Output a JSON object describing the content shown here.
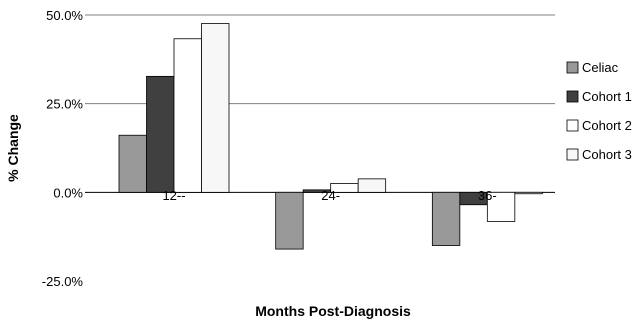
{
  "chart_data": {
    "type": "bar",
    "title": "",
    "xlabel": "Months Post-Diagnosis",
    "ylabel": "% Change",
    "categories": [
      "12--",
      "24-",
      "36-"
    ],
    "ylim": [
      -25,
      50
    ],
    "yticks": [
      {
        "value": 50,
        "label": "50.0%"
      },
      {
        "value": 25,
        "label": "25.0%"
      },
      {
        "value": 0,
        "label": "0.0%"
      },
      {
        "value": -25,
        "label": "-25.0%"
      }
    ],
    "grid": true,
    "legend_position": "right",
    "series": [
      {
        "name": "Celiac",
        "color": "#999999",
        "values": [
          16.1,
          -16.0,
          -15.0
        ]
      },
      {
        "name": "Cohort 1",
        "color": "#404040",
        "values": [
          32.7,
          0.7,
          -3.5
        ]
      },
      {
        "name": "Cohort 2",
        "color": "#ffffff",
        "values": [
          43.3,
          2.5,
          -8.2
        ]
      },
      {
        "name": "Cohort 3",
        "color": "#f7f7f7",
        "values": [
          47.6,
          3.8,
          -0.4
        ]
      }
    ]
  }
}
